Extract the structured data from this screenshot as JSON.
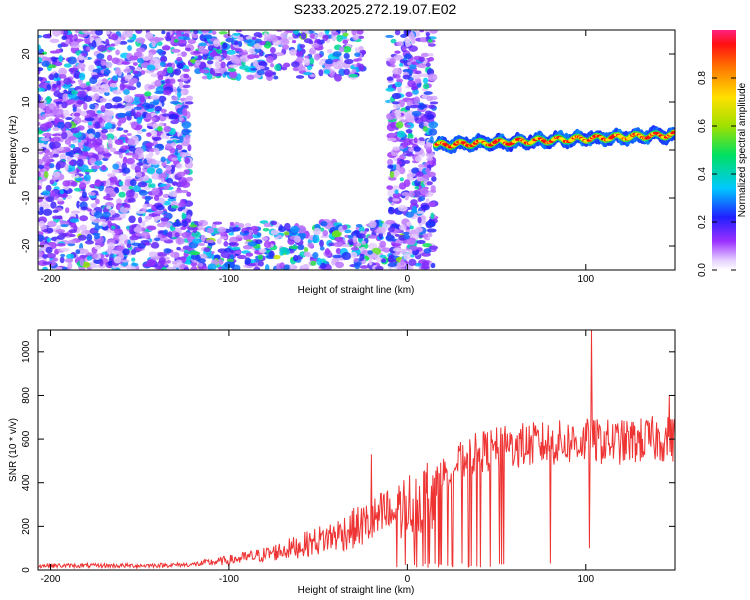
{
  "title": "S233.2025.272.19.07.E02",
  "chart_data": [
    {
      "type": "heatmap",
      "name": "spectrogram",
      "xlabel": "Height of straight line (km)",
      "ylabel": "Frequency (Hz)",
      "xlim": [
        -207,
        150
      ],
      "ylim": [
        -25,
        25
      ],
      "xticks": [
        -200,
        -100,
        0,
        100
      ],
      "yticks": [
        -20,
        -10,
        0,
        10,
        20
      ],
      "colorbar": {
        "label": "Normalized spectral amplitude",
        "range": [
          0,
          1
        ],
        "ticks": [
          0.0,
          0.2,
          0.4,
          0.6,
          0.8
        ]
      },
      "features": [
        {
          "desc": "diffuse noise region",
          "x": [
            -207,
            -122
          ],
          "y": [
            -25,
            25
          ],
          "amplitude": 0.2
        },
        {
          "desc": "lower noise band",
          "x": [
            -122,
            -5
          ],
          "y": [
            -25,
            -15
          ],
          "amplitude": 0.3
        },
        {
          "desc": "upper noise band",
          "x": [
            -122,
            -25
          ],
          "y": [
            15,
            25
          ],
          "amplitude": 0.25
        },
        {
          "desc": "noise column",
          "x": [
            -10,
            15
          ],
          "y": [
            -25,
            25
          ],
          "amplitude": 0.2
        },
        {
          "desc": "carrier tone",
          "x": [
            16,
            150
          ],
          "freq_start": 1.0,
          "freq_end": 3.2,
          "amplitude": 0.9
        }
      ]
    },
    {
      "type": "line",
      "name": "snr",
      "xlabel": "Height of straight line (km)",
      "ylabel": "SNR (10 * v/v)",
      "xlim": [
        -207,
        150
      ],
      "ylim": [
        0,
        1100
      ],
      "xticks": [
        -200,
        -100,
        0,
        100
      ],
      "yticks": [
        0,
        200,
        400,
        600,
        800,
        1000
      ],
      "color": "#ee3333",
      "trend_x": [
        -207,
        -150,
        -120,
        -100,
        -80,
        -60,
        -40,
        -20,
        -10,
        0,
        10,
        20,
        30,
        40,
        60,
        80,
        100,
        120,
        140,
        150
      ],
      "trend_y": [
        20,
        20,
        25,
        45,
        70,
        110,
        160,
        220,
        260,
        300,
        330,
        440,
        500,
        540,
        570,
        580,
        590,
        585,
        600,
        600
      ],
      "spikes": [
        {
          "x": 103,
          "y": 1100
        },
        {
          "x": 102,
          "y": 100
        },
        {
          "x": 80,
          "y": 30
        },
        {
          "x": -20,
          "y": 530
        },
        {
          "x": 147,
          "y": 800
        }
      ]
    }
  ]
}
